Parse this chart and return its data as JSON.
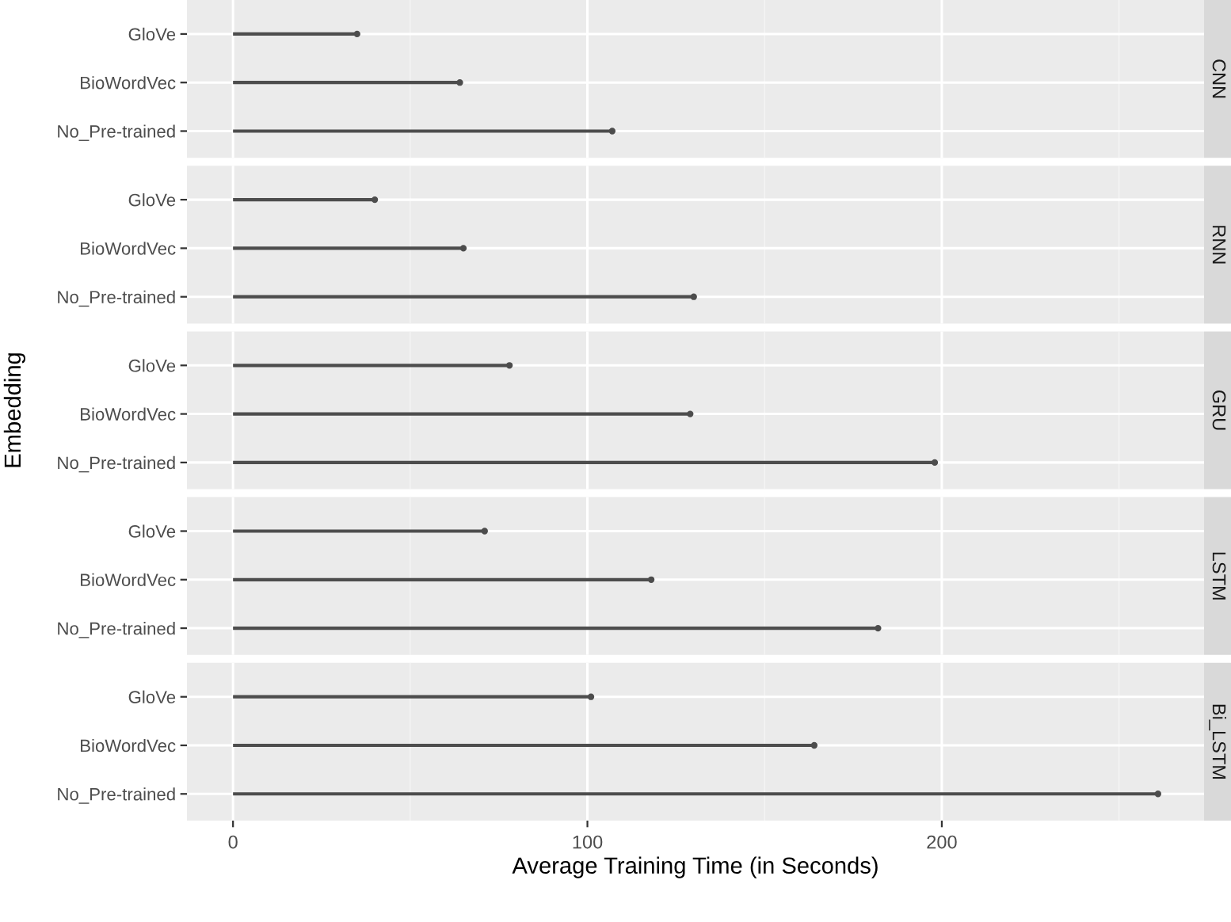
{
  "chart_data": [
    {
      "type": "lollipop",
      "orientation": "horizontal",
      "title": "CNN",
      "categories": [
        "GloVe",
        "BioWordVec",
        "No_Pre-trained"
      ],
      "values": [
        35,
        64,
        107
      ],
      "color": "#4d4d4d",
      "xlim": [
        -13,
        274
      ],
      "xticks": [
        0,
        100,
        200
      ],
      "grid": true,
      "tick_labels": "y",
      "marker": "circle"
    },
    {
      "type": "lollipop",
      "orientation": "horizontal",
      "title": "RNN",
      "categories": [
        "GloVe",
        "BioWordVec",
        "No_Pre-trained"
      ],
      "values": [
        40,
        65,
        130
      ],
      "color": "#4d4d4d",
      "xlim": [
        -13,
        274
      ],
      "xticks": [
        0,
        100,
        200
      ],
      "grid": true,
      "tick_labels": "y",
      "marker": "circle"
    },
    {
      "type": "lollipop",
      "orientation": "horizontal",
      "title": "GRU",
      "ylabel": "Embedding",
      "categories": [
        "GloVe",
        "BioWordVec",
        "No_Pre-trained"
      ],
      "values": [
        78,
        129,
        198
      ],
      "color": "#4d4d4d",
      "xlim": [
        -13,
        274
      ],
      "xticks": [
        0,
        100,
        200
      ],
      "grid": true,
      "tick_labels": "y",
      "marker": "circle"
    },
    {
      "type": "lollipop",
      "orientation": "horizontal",
      "title": "LSTM",
      "categories": [
        "GloVe",
        "BioWordVec",
        "No_Pre-trained"
      ],
      "values": [
        71,
        118,
        182
      ],
      "color": "#4d4d4d",
      "xlim": [
        -13,
        274
      ],
      "xticks": [
        0,
        100,
        200
      ],
      "grid": true,
      "tick_labels": "y",
      "marker": "circle"
    },
    {
      "type": "lollipop",
      "orientation": "horizontal",
      "title": "Bi_LSTM",
      "xlabel": "Average Training Time (in Seconds)",
      "categories": [
        "GloVe",
        "BioWordVec",
        "No_Pre-trained"
      ],
      "values": [
        101,
        164,
        261
      ],
      "color": "#4d4d4d",
      "xlim": [
        -13,
        274
      ],
      "xticks": [
        0,
        100,
        200
      ],
      "grid": true,
      "marker": "circle"
    }
  ]
}
